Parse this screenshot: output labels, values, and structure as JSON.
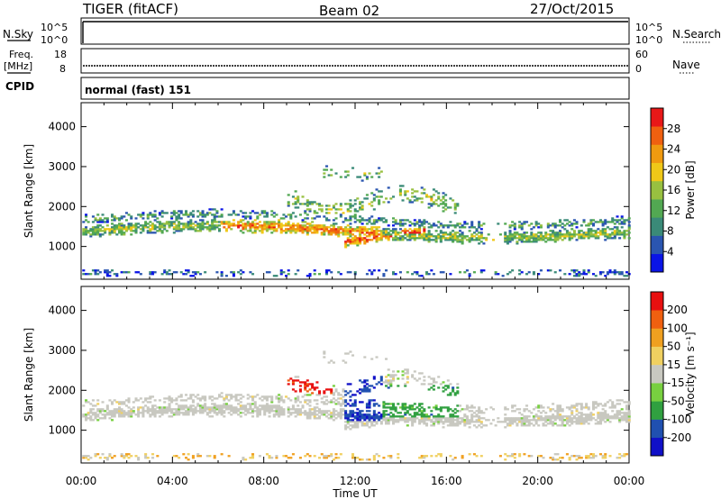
{
  "header": {
    "station": "TIGER (fitACF)",
    "beam": "Beam 02",
    "date": "27/Oct/2015"
  },
  "top_panels": {
    "nsky_label": "N.Sky",
    "nsearch_label": "N.Search",
    "nsky_ticks": [
      "10^5",
      "10^0"
    ],
    "freq_label_1": "Freq.",
    "freq_label_2": "[MHz]",
    "freq_ticks": [
      "18",
      "8"
    ],
    "nave_label": "Nave",
    "nave_ticks": [
      "60",
      "0"
    ],
    "cpid_label": "CPID",
    "cpid_text": "normal (fast) 151"
  },
  "chart_data": [
    {
      "type": "heatmap",
      "name": "power",
      "ylabel": "Slant Range [km]",
      "xlabel": "",
      "x_ticks": [
        "00:00",
        "04:00",
        "08:00",
        "12:00",
        "16:00",
        "20:00",
        "00:00"
      ],
      "x_range_hours": [
        0,
        24
      ],
      "y_ticks": [
        1000,
        2000,
        3000,
        4000
      ],
      "ylim": [
        180,
        4600
      ],
      "colorbar": {
        "label": "Power [dB]",
        "range": [
          0,
          32
        ],
        "tick_values": [
          4,
          8,
          12,
          16,
          20,
          24,
          28
        ],
        "colors": [
          "#0a14e6",
          "#2a55b0",
          "#3a8a78",
          "#52a852",
          "#98c040",
          "#f0c818",
          "#f09a10",
          "#f06010",
          "#e81818"
        ]
      }
    },
    {
      "type": "heatmap",
      "name": "velocity",
      "ylabel": "Slant Range [km]",
      "xlabel": "Time UT",
      "x_ticks": [
        "00:00",
        "04:00",
        "08:00",
        "12:00",
        "16:00",
        "20:00",
        "00:00"
      ],
      "x_range_hours": [
        0,
        24
      ],
      "y_ticks": [
        1000,
        2000,
        3000,
        4000
      ],
      "ylim": [
        180,
        4600
      ],
      "colorbar": {
        "label": "Velocity [m s⁻¹]",
        "tick_labels": [
          "200",
          "100",
          "50",
          "15",
          "-15",
          "-50",
          "-100",
          "-200"
        ],
        "colors": [
          "#1010c8",
          "#2050b0",
          "#30a040",
          "#78d040",
          "#c8c8c0",
          "#f0d060",
          "#f0a020",
          "#f06010",
          "#e81010"
        ]
      }
    }
  ]
}
